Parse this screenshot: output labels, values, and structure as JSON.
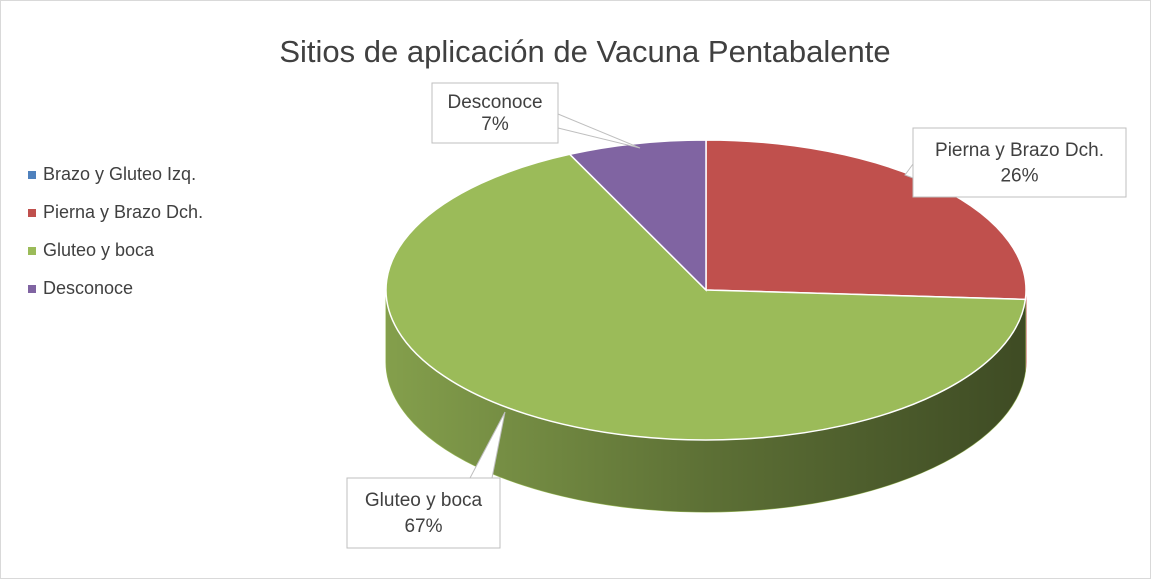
{
  "chart_data": {
    "type": "pie",
    "title": "Sitios de aplicación de Vacuna Pentabalente",
    "categories": [
      "Brazo y Gluteo Izq.",
      "Pierna y Brazo Dch.",
      "Gluteo y boca",
      "Desconoce"
    ],
    "values": [
      0,
      26,
      67,
      7
    ],
    "value_labels": [
      null,
      "26%",
      "67%",
      "7%"
    ],
    "colors": [
      "#4f81bd",
      "#c0504d",
      "#9bbb59",
      "#8064a2"
    ],
    "legend": "left"
  }
}
